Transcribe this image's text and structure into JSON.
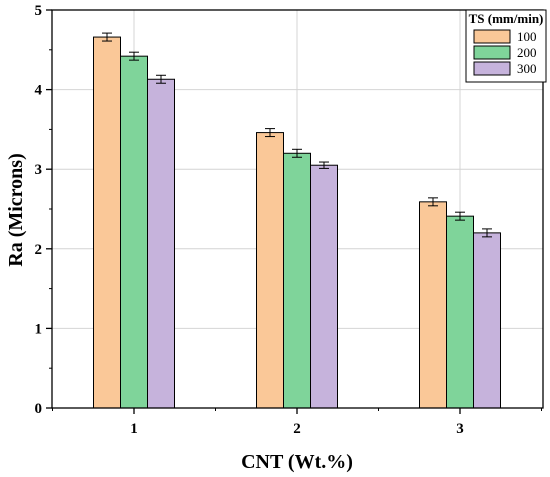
{
  "chart_data": {
    "type": "bar",
    "categories": [
      "1",
      "2",
      "3"
    ],
    "xlabel": "CNT (Wt.%)",
    "ylabel": "Ra (Microns)",
    "ylim": [
      0,
      5
    ],
    "yticks": [
      "0",
      "1",
      "2",
      "3",
      "4",
      "5"
    ],
    "grid": true,
    "legend": {
      "title": "TS (mm/min)",
      "placement": "top-right"
    },
    "series": [
      {
        "name": "100",
        "color": "#FAC898",
        "values": [
          4.66,
          3.46,
          2.59
        ],
        "errors": [
          0.05,
          0.05,
          0.05
        ]
      },
      {
        "name": "200",
        "color": "#7FD49A",
        "values": [
          4.42,
          3.2,
          2.41
        ],
        "errors": [
          0.05,
          0.05,
          0.05
        ]
      },
      {
        "name": "300",
        "color": "#C6B3DC",
        "values": [
          4.13,
          3.05,
          2.2
        ],
        "errors": [
          0.05,
          0.04,
          0.05
        ]
      }
    ]
  }
}
